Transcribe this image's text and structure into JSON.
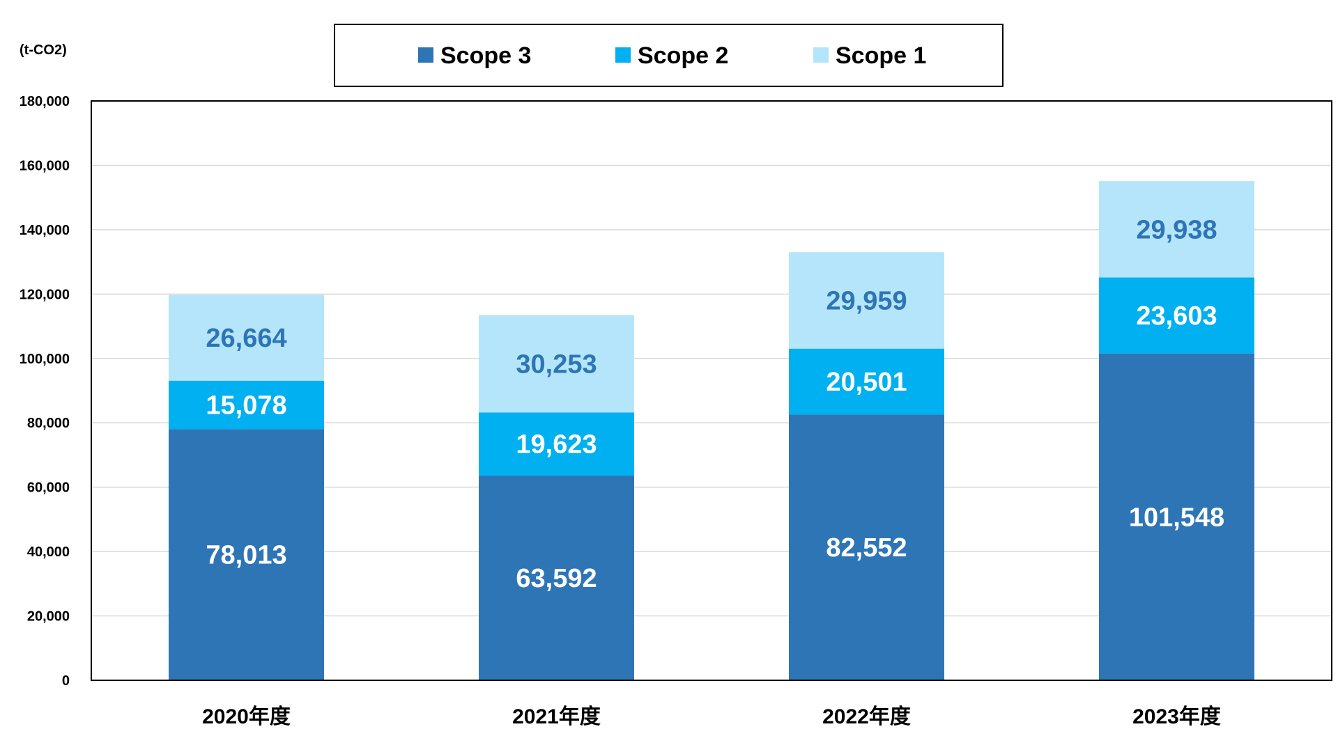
{
  "chart_data": {
    "type": "bar",
    "stacked": true,
    "unit_label": "(t-CO2)",
    "categories": [
      "2020年度",
      "2021年度",
      "2022年度",
      "2023年度"
    ],
    "series": [
      {
        "name": "Scope 3",
        "color": "#2E75B6",
        "label_color": "#ffffff",
        "values": [
          78013,
          63592,
          82552,
          101548
        ],
        "labels": [
          "78,013",
          "63,592",
          "82,552",
          "101,548"
        ]
      },
      {
        "name": "Scope 2",
        "color": "#00B0F0",
        "label_color": "#ffffff",
        "values": [
          15078,
          19623,
          20501,
          23603
        ],
        "labels": [
          "15,078",
          "19,623",
          "20,501",
          "23,603"
        ]
      },
      {
        "name": "Scope 1",
        "color": "#B4E5FA",
        "label_color": "#2E75B6",
        "values": [
          26664,
          30253,
          29959,
          29938
        ],
        "labels": [
          "26,664",
          "30,253",
          "29,959",
          "29,938"
        ]
      }
    ],
    "ylim": [
      0,
      180000
    ],
    "yticks": [
      0,
      20000,
      40000,
      60000,
      80000,
      100000,
      120000,
      140000,
      160000,
      180000
    ],
    "ytick_labels": [
      "0",
      "20,000",
      "40,000",
      "60,000",
      "80,000",
      "100,000",
      "120,000",
      "140,000",
      "160,000",
      "180,000"
    ],
    "grid": true,
    "gridline_color": "#D9D9D9",
    "legend_position": "top-center"
  }
}
